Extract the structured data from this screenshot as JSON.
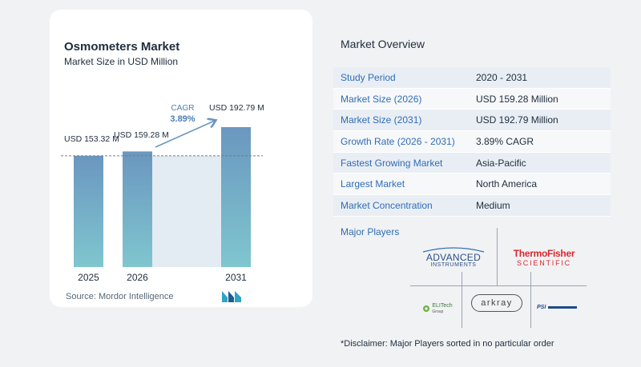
{
  "chart_data": {
    "type": "bar",
    "title": "Osmometers Market",
    "subtitle": "Market Size in USD Million",
    "categories": [
      "2025",
      "2026",
      "2031"
    ],
    "values": [
      153.32,
      159.28,
      192.79
    ],
    "data_labels": [
      "USD 153.32 M",
      "USD 159.28 M",
      "USD 192.79 M"
    ],
    "cagr_label": "CAGR",
    "cagr_value": "3.89%",
    "colors": {
      "bar_top": "#6b97bf",
      "bar_bottom": "#7fc6cf",
      "shade": "#e3ebf3",
      "arrow": "#6b97bf",
      "cagr": "#4a7fb4"
    }
  },
  "source": "Source:  Mordor Intelligence",
  "overview": {
    "title": "Market Overview",
    "rows": [
      {
        "label": "Study Period",
        "value": "2020 - 2031"
      },
      {
        "label": "Market Size (2026)",
        "value": "USD 159.28 Million"
      },
      {
        "label": "Market Size (2031)",
        "value": "USD 192.79 Million"
      },
      {
        "label": "Growth Rate (2026 - 2031)",
        "value": "3.89% CAGR"
      },
      {
        "label": "Fastest Growing Market",
        "value": "Asia-Pacific"
      },
      {
        "label": "Largest Market",
        "value": "North America"
      },
      {
        "label": "Market Concentration",
        "value": "Medium"
      }
    ]
  },
  "major_players": {
    "title": "Major Players",
    "logos": [
      "ADVANCED",
      "INSTRUMENTS",
      "ThermoFisher",
      "SCIENTIFIC",
      "ELITech",
      "Group",
      "arkray",
      "PSI"
    ]
  },
  "disclaimer": "*Disclaimer: Major Players sorted in no particular order"
}
